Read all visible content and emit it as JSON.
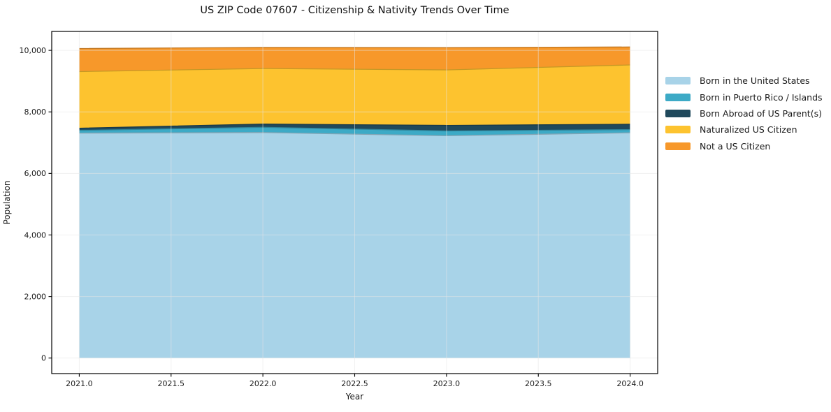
{
  "title": "US ZIP Code 07607 - Citizenship & Nativity Trends Over Time",
  "chart_data": {
    "type": "area",
    "stacked": true,
    "title": "US ZIP Code 07607 - Citizenship & Nativity Trends Over Time",
    "xlabel": "Year",
    "ylabel": "Population",
    "x": [
      2021,
      2022,
      2023,
      2024
    ],
    "series": [
      {
        "name": "Born in the United States",
        "color": "#a8d3e8",
        "values": [
          7310,
          7330,
          7225,
          7320
        ]
      },
      {
        "name": "Born in Puerto Rico / Islands",
        "color": "#3daac6",
        "values": [
          90,
          170,
          155,
          105
        ]
      },
      {
        "name": "Born Abroad of US Parent(s)",
        "color": "#20495c",
        "values": [
          70,
          105,
          180,
          175
        ]
      },
      {
        "name": "Naturalized US Citizen",
        "color": "#fdc32f",
        "values": [
          1840,
          1805,
          1805,
          1925
        ]
      },
      {
        "name": "Not a US Citizen",
        "color": "#f7982a",
        "values": [
          750,
          685,
          725,
          585
        ]
      }
    ],
    "totals": [
      10060,
      10095,
      10090,
      10110
    ],
    "xlim": [
      2020.85,
      2024.15
    ],
    "ylim": [
      -505,
      10615
    ],
    "x_tick_values": [
      2021.0,
      2021.5,
      2022.0,
      2022.5,
      2023.0,
      2023.5,
      2024.0
    ],
    "x_tick_labels": [
      "2021.0",
      "2021.5",
      "2022.0",
      "2022.5",
      "2023.0",
      "2023.5",
      "2024.0"
    ],
    "y_tick_values": [
      0,
      2000,
      4000,
      6000,
      8000,
      10000
    ],
    "y_tick_labels": [
      "0",
      "2,000",
      "4,000",
      "6,000",
      "8,000",
      "10,000"
    ],
    "grid": true,
    "legend_position": "right-outside",
    "colors": {
      "spine": "#000000",
      "tick_label": "#1a1a1a",
      "gridline": "#e6e6e6",
      "background": "#ffffff"
    }
  }
}
